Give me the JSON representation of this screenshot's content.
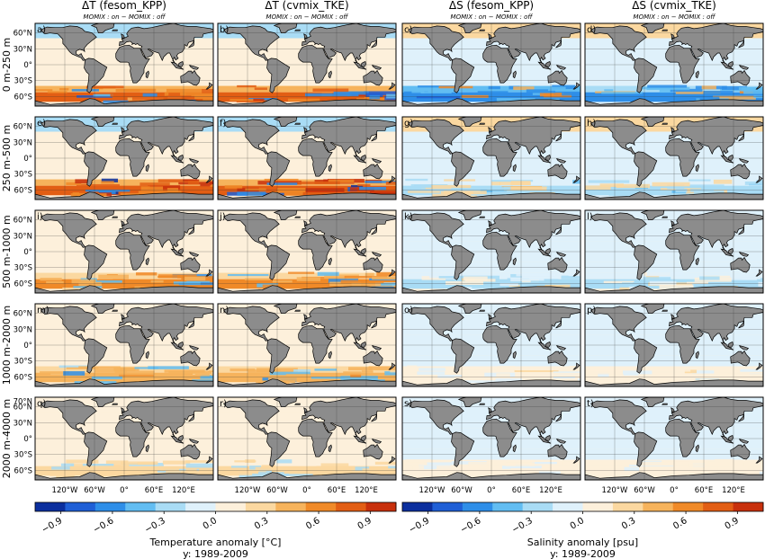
{
  "chart_data": {
    "type": "heatmap",
    "columns": [
      {
        "title": "ΔT (fesom_KPP)",
        "subtitle": "MOMIX : on − MOMIX : off"
      },
      {
        "title": "ΔT (cvmix_TKE)",
        "subtitle": "MOMIX : on − MOMIX : off"
      },
      {
        "title": "ΔS (fesom_KPP)",
        "subtitle": "MOMIX : on − MOMIX : off"
      },
      {
        "title": "ΔS (cvmix_TKE)",
        "subtitle": "MOMIX : on − MOMIX : off"
      }
    ],
    "rows": [
      "0 m-250 m",
      "250 m-500 m",
      "500 m-1000 m",
      "1000 m-2000 m",
      "2000 m-4000 m"
    ],
    "panel_labels": [
      "a)",
      "b)",
      "c)",
      "d)",
      "e)",
      "f)",
      "g)",
      "h)",
      "i)",
      "j)",
      "k)",
      "l)",
      "m)",
      "n)",
      "o)",
      "p)",
      "q)",
      "r)",
      "s)",
      "t)"
    ],
    "lat_ticks": [
      "60°N",
      "30°N",
      "0°",
      "30°S",
      "60°S"
    ],
    "lat_ticks_deep": [
      "70°N",
      "60°N",
      "30°N",
      "0°",
      "30°S",
      "60°S"
    ],
    "lon_ticks": [
      "120°W",
      "60°W",
      "0°",
      "60°E",
      "120°E"
    ],
    "colorbars": [
      {
        "label": "Temperature anomaly [°C]",
        "sublabel": "y: 1989-2009",
        "ticks": [
          "−0.9",
          "−0.6",
          "−0.3",
          "0.0",
          "0.3",
          "0.6",
          "0.9"
        ],
        "range": [
          -1.05,
          1.05
        ]
      },
      {
        "label": "Salinity anomaly [psu]",
        "sublabel": "y: 1989-2009",
        "ticks": [
          "−0.9",
          "−0.6",
          "−0.3",
          "0.0",
          "0.3",
          "0.6",
          "0.9"
        ],
        "range": [
          -1.05,
          1.05
        ]
      }
    ],
    "colormap": [
      "#0b2f9e",
      "#1f5fd6",
      "#2e8ee8",
      "#62bdf2",
      "#a9dcf5",
      "#dff1fb",
      "#fdf0db",
      "#fbd8a0",
      "#f6b35c",
      "#f08a28",
      "#e25e14",
      "#c8300c"
    ],
    "land_color": "#8c8c8c",
    "southern_ocean_anomaly": [
      [
        0.75,
        0.8,
        -0.65,
        -0.6
      ],
      [
        0.85,
        0.85,
        -0.3,
        -0.3
      ],
      [
        0.55,
        0.55,
        -0.2,
        -0.2
      ],
      [
        0.45,
        0.45,
        0.15,
        0.15
      ],
      [
        0.3,
        0.3,
        0.1,
        0.1
      ]
    ]
  }
}
